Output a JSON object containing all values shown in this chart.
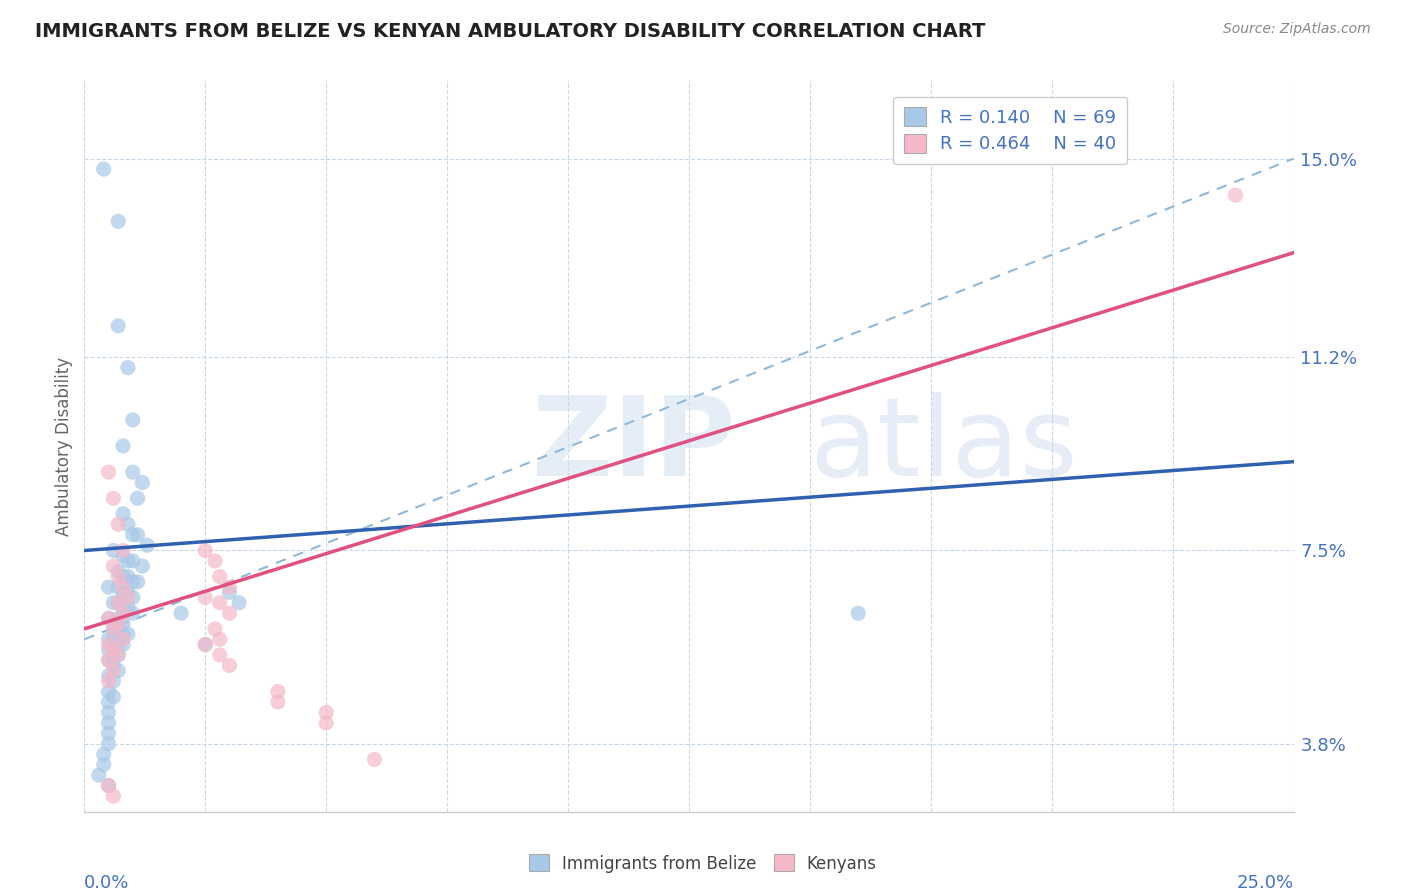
{
  "title": "IMMIGRANTS FROM BELIZE VS KENYAN AMBULATORY DISABILITY CORRELATION CHART",
  "source": "Source: ZipAtlas.com",
  "ylabel": "Ambulatory Disability",
  "ytick_vals": [
    0.15,
    0.112,
    0.075,
    0.038
  ],
  "ytick_labels": [
    "15.0%",
    "11.2%",
    "7.5%",
    "3.8%"
  ],
  "xlim": [
    0.0,
    0.25
  ],
  "ylim": [
    0.025,
    0.165
  ],
  "legend_belize": {
    "R": "0.140",
    "N": "69"
  },
  "legend_kenyan": {
    "R": "0.464",
    "N": "40"
  },
  "belize_color": "#a8c8e8",
  "kenyan_color": "#f5b8c8",
  "belize_line_color": "#3060b0",
  "kenyan_line_color": "#e05080",
  "dash_line_color": "#90b8d8",
  "belize_line": [
    [
      0.0,
      0.075
    ],
    [
      0.25,
      0.092
    ]
  ],
  "kenyan_line": [
    [
      0.0,
      0.06
    ],
    [
      0.25,
      0.132
    ]
  ],
  "dash_line": [
    [
      0.0,
      0.058
    ],
    [
      0.25,
      0.15
    ]
  ],
  "belize_scatter": [
    [
      0.004,
      0.148
    ],
    [
      0.007,
      0.138
    ],
    [
      0.007,
      0.118
    ],
    [
      0.009,
      0.11
    ],
    [
      0.01,
      0.1
    ],
    [
      0.008,
      0.095
    ],
    [
      0.01,
      0.09
    ],
    [
      0.012,
      0.088
    ],
    [
      0.011,
      0.085
    ],
    [
      0.008,
      0.082
    ],
    [
      0.009,
      0.08
    ],
    [
      0.01,
      0.078
    ],
    [
      0.011,
      0.078
    ],
    [
      0.013,
      0.076
    ],
    [
      0.006,
      0.075
    ],
    [
      0.008,
      0.074
    ],
    [
      0.009,
      0.073
    ],
    [
      0.01,
      0.073
    ],
    [
      0.012,
      0.072
    ],
    [
      0.007,
      0.071
    ],
    [
      0.008,
      0.07
    ],
    [
      0.009,
      0.07
    ],
    [
      0.01,
      0.069
    ],
    [
      0.011,
      0.069
    ],
    [
      0.005,
      0.068
    ],
    [
      0.007,
      0.068
    ],
    [
      0.008,
      0.067
    ],
    [
      0.009,
      0.067
    ],
    [
      0.01,
      0.066
    ],
    [
      0.006,
      0.065
    ],
    [
      0.007,
      0.065
    ],
    [
      0.008,
      0.064
    ],
    [
      0.009,
      0.064
    ],
    [
      0.01,
      0.063
    ],
    [
      0.005,
      0.062
    ],
    [
      0.007,
      0.062
    ],
    [
      0.008,
      0.061
    ],
    [
      0.006,
      0.06
    ],
    [
      0.007,
      0.06
    ],
    [
      0.008,
      0.059
    ],
    [
      0.009,
      0.059
    ],
    [
      0.005,
      0.058
    ],
    [
      0.006,
      0.058
    ],
    [
      0.007,
      0.057
    ],
    [
      0.008,
      0.057
    ],
    [
      0.005,
      0.056
    ],
    [
      0.006,
      0.055
    ],
    [
      0.007,
      0.055
    ],
    [
      0.005,
      0.054
    ],
    [
      0.006,
      0.053
    ],
    [
      0.007,
      0.052
    ],
    [
      0.005,
      0.051
    ],
    [
      0.006,
      0.05
    ],
    [
      0.005,
      0.048
    ],
    [
      0.006,
      0.047
    ],
    [
      0.005,
      0.046
    ],
    [
      0.005,
      0.044
    ],
    [
      0.005,
      0.042
    ],
    [
      0.005,
      0.04
    ],
    [
      0.005,
      0.038
    ],
    [
      0.004,
      0.036
    ],
    [
      0.004,
      0.034
    ],
    [
      0.003,
      0.032
    ],
    [
      0.005,
      0.03
    ],
    [
      0.03,
      0.067
    ],
    [
      0.032,
      0.065
    ],
    [
      0.02,
      0.063
    ],
    [
      0.025,
      0.057
    ],
    [
      0.16,
      0.063
    ]
  ],
  "kenyan_scatter": [
    [
      0.005,
      0.09
    ],
    [
      0.006,
      0.085
    ],
    [
      0.007,
      0.08
    ],
    [
      0.008,
      0.075
    ],
    [
      0.006,
      0.072
    ],
    [
      0.007,
      0.07
    ],
    [
      0.008,
      0.068
    ],
    [
      0.009,
      0.066
    ],
    [
      0.007,
      0.065
    ],
    [
      0.008,
      0.063
    ],
    [
      0.005,
      0.062
    ],
    [
      0.007,
      0.061
    ],
    [
      0.006,
      0.06
    ],
    [
      0.008,
      0.058
    ],
    [
      0.005,
      0.057
    ],
    [
      0.006,
      0.056
    ],
    [
      0.007,
      0.055
    ],
    [
      0.005,
      0.054
    ],
    [
      0.006,
      0.052
    ],
    [
      0.005,
      0.05
    ],
    [
      0.025,
      0.075
    ],
    [
      0.027,
      0.073
    ],
    [
      0.028,
      0.07
    ],
    [
      0.03,
      0.068
    ],
    [
      0.025,
      0.066
    ],
    [
      0.028,
      0.065
    ],
    [
      0.03,
      0.063
    ],
    [
      0.027,
      0.06
    ],
    [
      0.028,
      0.058
    ],
    [
      0.025,
      0.057
    ],
    [
      0.028,
      0.055
    ],
    [
      0.03,
      0.053
    ],
    [
      0.04,
      0.048
    ],
    [
      0.04,
      0.046
    ],
    [
      0.05,
      0.044
    ],
    [
      0.05,
      0.042
    ],
    [
      0.005,
      0.03
    ],
    [
      0.006,
      0.028
    ],
    [
      0.06,
      0.035
    ],
    [
      0.238,
      0.143
    ]
  ]
}
